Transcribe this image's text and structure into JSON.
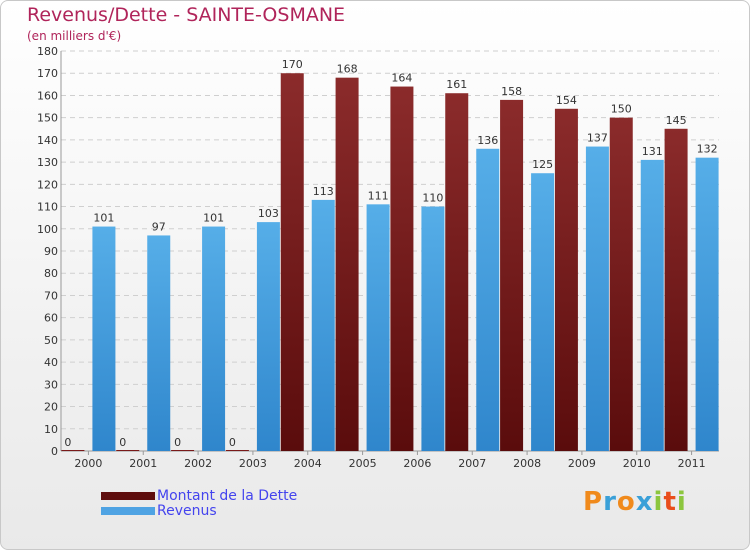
{
  "chart_data": {
    "type": "bar",
    "title": "Revenus/Dette - SAINTE-OSMANE",
    "subtitle": "(en milliers d'€)",
    "categories": [
      "2000",
      "2001",
      "2002",
      "2003",
      "2004",
      "2005",
      "2006",
      "2007",
      "2008",
      "2009",
      "2010",
      "2011"
    ],
    "series": [
      {
        "name": "Montant de la Dette",
        "color": "#7a1a1a",
        "values": [
          0,
          0,
          0,
          0,
          170,
          168,
          164,
          161,
          158,
          154,
          150,
          145
        ]
      },
      {
        "name": "Revenus",
        "color": "#4fa3e3",
        "values": [
          101,
          97,
          101,
          103,
          113,
          111,
          110,
          136,
          125,
          137,
          131,
          132
        ]
      }
    ],
    "ylim": [
      0,
      180
    ],
    "ytick_step": 10,
    "grid": true,
    "legend_position": "bottom-left"
  },
  "logo": {
    "letters": [
      "P",
      "r",
      "o",
      "x",
      "i",
      "t",
      "i"
    ],
    "colors": [
      "#f08a1c",
      "#3aa0d8",
      "#f08a1c",
      "#3aa0d8",
      "#8cc63e",
      "#e94e1b",
      "#8cc63e"
    ]
  }
}
